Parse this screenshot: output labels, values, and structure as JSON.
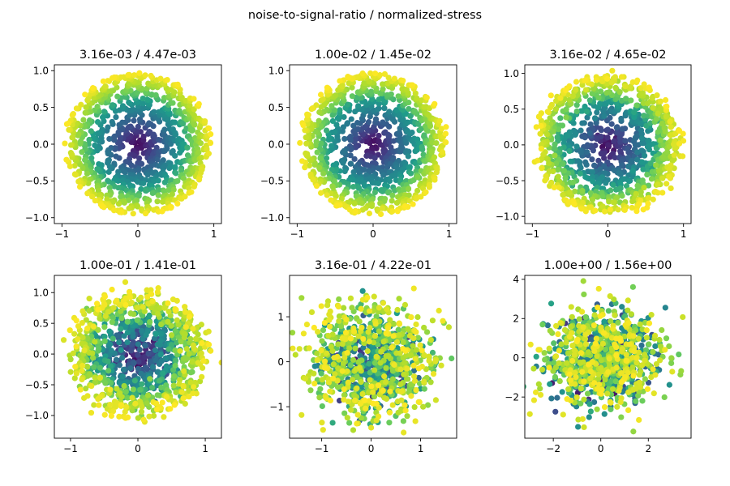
{
  "figure": {
    "suptitle": "noise-to-signal-ratio / normalized-stress"
  },
  "chart_data": [
    {
      "type": "scatter",
      "title": "3.16e-03 / 4.47e-03",
      "noise_ratio": 0.00316,
      "xlim": [
        -1.1,
        1.1
      ],
      "ylim": [
        -1.08,
        1.08
      ],
      "xticks": [
        -1,
        0,
        1
      ],
      "xticklabels": [
        "−1",
        "0",
        "1"
      ],
      "yticks": [
        -1.0,
        -0.5,
        0.0,
        0.5,
        1.0
      ],
      "yticklabels": [
        "−1.0",
        "−0.5",
        "0.0",
        "0.5",
        "1.0"
      ],
      "points": 1000,
      "colormap": "viridis",
      "color_by": "radius",
      "grid": false
    },
    {
      "type": "scatter",
      "title": "1.00e-02 / 1.45e-02",
      "noise_ratio": 0.01,
      "xlim": [
        -1.1,
        1.1
      ],
      "ylim": [
        -1.08,
        1.08
      ],
      "xticks": [
        -1,
        0,
        1
      ],
      "xticklabels": [
        "−1",
        "0",
        "1"
      ],
      "yticks": [
        -1.0,
        -0.5,
        0.0,
        0.5,
        1.0
      ],
      "yticklabels": [
        "−1.0",
        "−0.5",
        "0.0",
        "0.5",
        "1.0"
      ],
      "points": 1000,
      "colormap": "viridis",
      "color_by": "radius",
      "grid": false
    },
    {
      "type": "scatter",
      "title": "3.16e-02 / 4.65e-02",
      "noise_ratio": 0.0316,
      "xlim": [
        -1.1,
        1.1
      ],
      "ylim": [
        -1.1,
        1.12
      ],
      "xticks": [
        -1,
        0,
        1
      ],
      "xticklabels": [
        "−1",
        "0",
        "1"
      ],
      "yticks": [
        -1.0,
        -0.5,
        0.0,
        0.5,
        1.0
      ],
      "yticklabels": [
        "−1.0",
        "−0.5",
        "0.0",
        "0.5",
        "1.0"
      ],
      "points": 1000,
      "colormap": "viridis",
      "color_by": "radius",
      "grid": false
    },
    {
      "type": "scatter",
      "title": "1.00e-01 / 1.41e-01",
      "noise_ratio": 0.1,
      "xlim": [
        -1.24,
        1.24
      ],
      "ylim": [
        -1.37,
        1.28
      ],
      "xticks": [
        -1,
        0,
        1
      ],
      "xticklabels": [
        "−1",
        "0",
        "1"
      ],
      "yticks": [
        -1.0,
        -0.5,
        0.0,
        0.5,
        1.0
      ],
      "yticklabels": [
        "−1.0",
        "−0.5",
        "0.0",
        "0.5",
        "1.0"
      ],
      "points": 1000,
      "colormap": "viridis",
      "color_by": "radius",
      "grid": false
    },
    {
      "type": "scatter",
      "title": "3.16e-01 / 4.22e-01",
      "noise_ratio": 0.316,
      "xlim": [
        -1.65,
        1.73
      ],
      "ylim": [
        -1.7,
        1.92
      ],
      "xticks": [
        -1,
        0,
        1
      ],
      "xticklabels": [
        "−1",
        "0",
        "1"
      ],
      "yticks": [
        -1,
        0,
        1
      ],
      "yticklabels": [
        "−1",
        "0",
        "1"
      ],
      "points": 1000,
      "colormap": "viridis",
      "color_by": "radius",
      "grid": false
    },
    {
      "type": "scatter",
      "title": "1.00e+00 / 1.56e+00",
      "noise_ratio": 1.0,
      "xlim": [
        -3.2,
        3.8
      ],
      "ylim": [
        -4.1,
        4.2
      ],
      "xticks": [
        -2,
        0,
        2
      ],
      "xticklabels": [
        "−2",
        "0",
        "2"
      ],
      "yticks": [
        -2,
        0,
        2,
        4
      ],
      "yticklabels": [
        "−2",
        "0",
        "2",
        "4"
      ],
      "points": 1000,
      "colormap": "viridis",
      "color_by": "radius",
      "grid": false
    }
  ]
}
